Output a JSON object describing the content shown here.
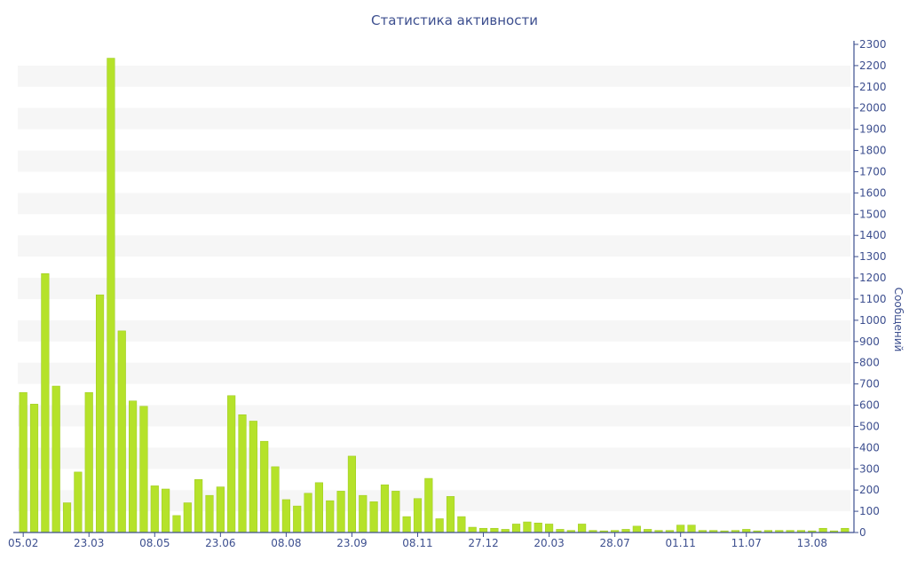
{
  "chart_data": {
    "type": "bar",
    "title": "Статистика активности",
    "xlabel": "",
    "ylabel": "Сообщений",
    "ylim": [
      0,
      2300
    ],
    "y_ticks": [
      0,
      100,
      200,
      300,
      400,
      500,
      600,
      700,
      800,
      900,
      1000,
      1100,
      1200,
      1300,
      1400,
      1500,
      1600,
      1700,
      1800,
      1900,
      2000,
      2100,
      2200,
      2300
    ],
    "y_axis_position": "right",
    "grid": "alternating horizontal bands",
    "x_tick_labels": [
      "05.02",
      "23.03",
      "08.05",
      "23.06",
      "08.08",
      "23.09",
      "08.11",
      "27.12",
      "20.03",
      "28.07",
      "01.11",
      "11.07",
      "13.08"
    ],
    "x_tick_label_at_bar": [
      0,
      6,
      12,
      18,
      24,
      30,
      36,
      42,
      48,
      54,
      60,
      66,
      72
    ],
    "values": [
      660,
      605,
      1220,
      690,
      140,
      285,
      660,
      1120,
      2235,
      950,
      620,
      595,
      220,
      205,
      80,
      140,
      250,
      175,
      215,
      645,
      555,
      525,
      430,
      310,
      155,
      125,
      185,
      235,
      150,
      195,
      360,
      175,
      145,
      225,
      195,
      75,
      160,
      255,
      65,
      170,
      75,
      25,
      20,
      20,
      15,
      40,
      50,
      45,
      40,
      15,
      10,
      40,
      10,
      8,
      10,
      15,
      30,
      15,
      10,
      10,
      35,
      35,
      10,
      10,
      8,
      10,
      15,
      8,
      10,
      10,
      10,
      10,
      8,
      20,
      8,
      20
    ]
  },
  "colors": {
    "bar": "#b5e22a",
    "bar_stroke": "#9cc81f",
    "band": "#f6f6f6",
    "axis": "#3d4f8f"
  }
}
